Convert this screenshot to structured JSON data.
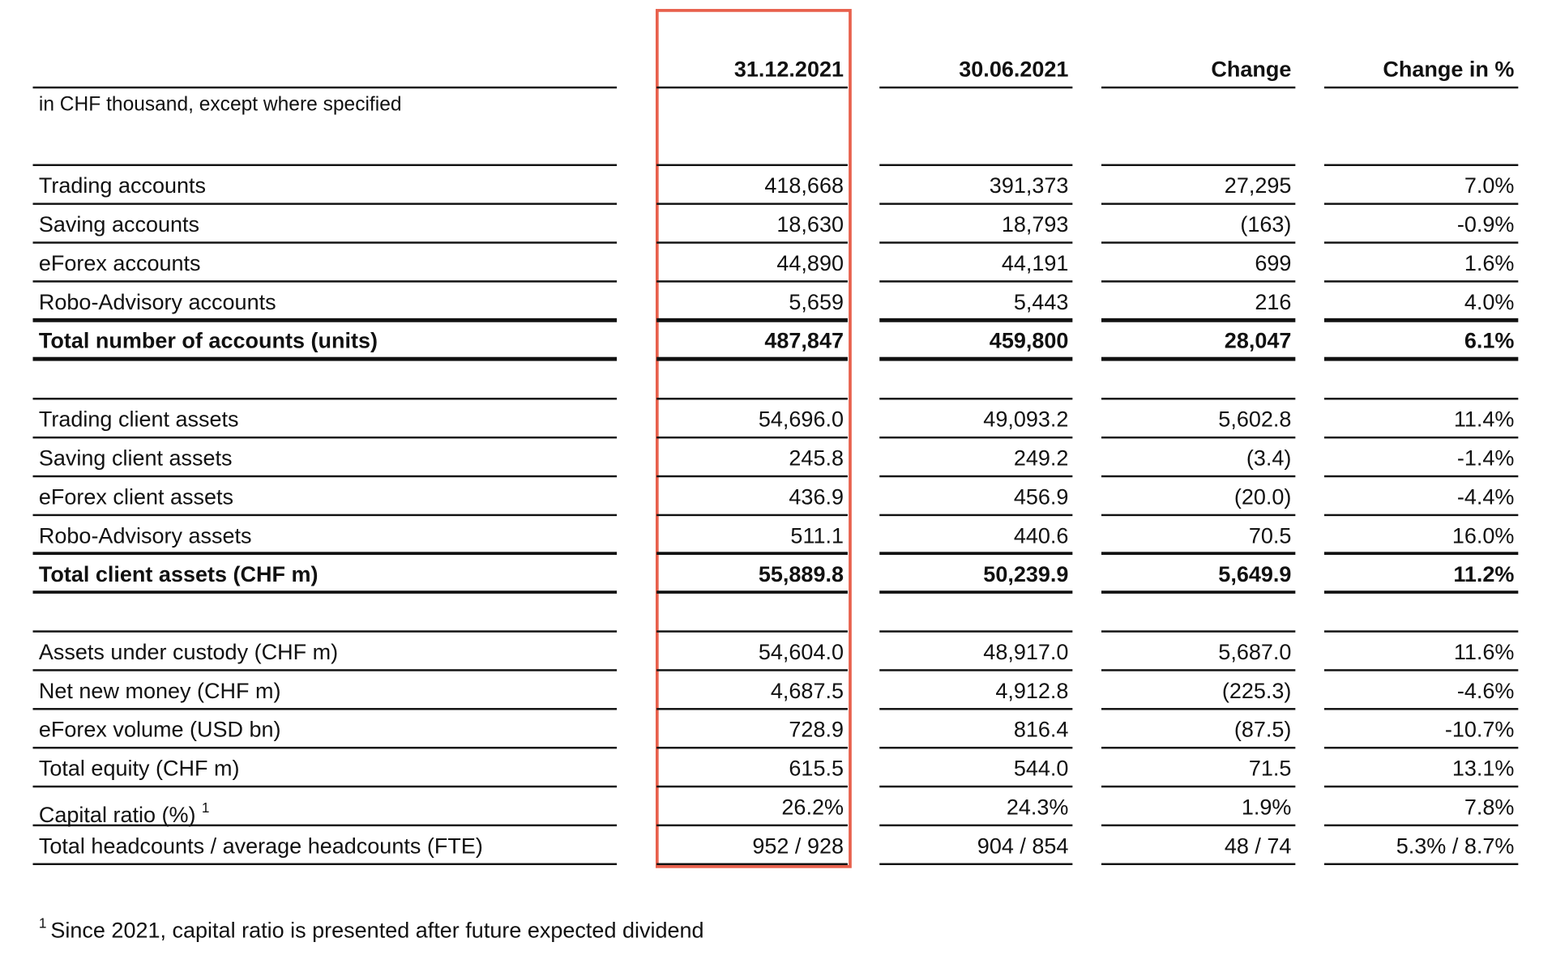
{
  "table": {
    "columns": [
      "31.12.2021",
      "30.06.2021",
      "Change",
      "Change in %"
    ],
    "unit_note": "in CHF thousand, except where specified",
    "sections": [
      {
        "rows": [
          {
            "label": "Trading accounts",
            "values": [
              "418,668",
              "391,373",
              "27,295",
              "7.0%"
            ],
            "total": false
          },
          {
            "label": "Saving accounts",
            "values": [
              "18,630",
              "18,793",
              "(163)",
              "-0.9%"
            ],
            "total": false
          },
          {
            "label": "eForex accounts",
            "values": [
              "44,890",
              "44,191",
              "699",
              "1.6%"
            ],
            "total": false
          },
          {
            "label": "Robo-Advisory accounts",
            "values": [
              "5,659",
              "5,443",
              "216",
              "4.0%"
            ],
            "total": false
          },
          {
            "label": "Total number of accounts (units)",
            "values": [
              "487,847",
              "459,800",
              "28,047",
              "6.1%"
            ],
            "total": true
          }
        ]
      },
      {
        "rows": [
          {
            "label": "Trading client assets",
            "values": [
              "54,696.0",
              "49,093.2",
              "5,602.8",
              "11.4%"
            ],
            "total": false
          },
          {
            "label": "Saving client assets",
            "values": [
              "245.8",
              "249.2",
              "(3.4)",
              "-1.4%"
            ],
            "total": false
          },
          {
            "label": "eForex client assets",
            "values": [
              "436.9",
              "456.9",
              "(20.0)",
              "-4.4%"
            ],
            "total": false
          },
          {
            "label": "Robo-Advisory assets",
            "values": [
              "511.1",
              "440.6",
              "70.5",
              "16.0%"
            ],
            "total": false
          },
          {
            "label": "Total client assets (CHF m)",
            "values": [
              "55,889.8",
              "50,239.9",
              "5,649.9",
              "11.2%"
            ],
            "total": true
          }
        ]
      },
      {
        "rows": [
          {
            "label": "Assets under custody (CHF m)",
            "values": [
              "54,604.0",
              "48,917.0",
              "5,687.0",
              "11.6%"
            ],
            "total": false
          },
          {
            "label": "Net new money (CHF m)",
            "values": [
              "4,687.5",
              "4,912.8",
              "(225.3)",
              "-4.6%"
            ],
            "total": false
          },
          {
            "label": "eForex volume (USD bn)",
            "values": [
              "728.9",
              "816.4",
              "(87.5)",
              "-10.7%"
            ],
            "total": false
          },
          {
            "label": "Total equity (CHF m)",
            "values": [
              "615.5",
              "544.0",
              "71.5",
              "13.1%"
            ],
            "total": false
          },
          {
            "label": "Capital ratio (%)",
            "note": "1",
            "values": [
              "26.2%",
              "24.3%",
              "1.9%",
              "7.8%"
            ],
            "total": false
          },
          {
            "label": "Total headcounts / average headcounts (FTE)",
            "values": [
              "952 / 928",
              "904 / 854",
              "48 / 74",
              "5.3% /  8.7%"
            ],
            "total": false
          }
        ]
      }
    ]
  },
  "footnote": {
    "marker": "1",
    "text": "Since 2021, capital ratio is presented after future expected dividend"
  }
}
